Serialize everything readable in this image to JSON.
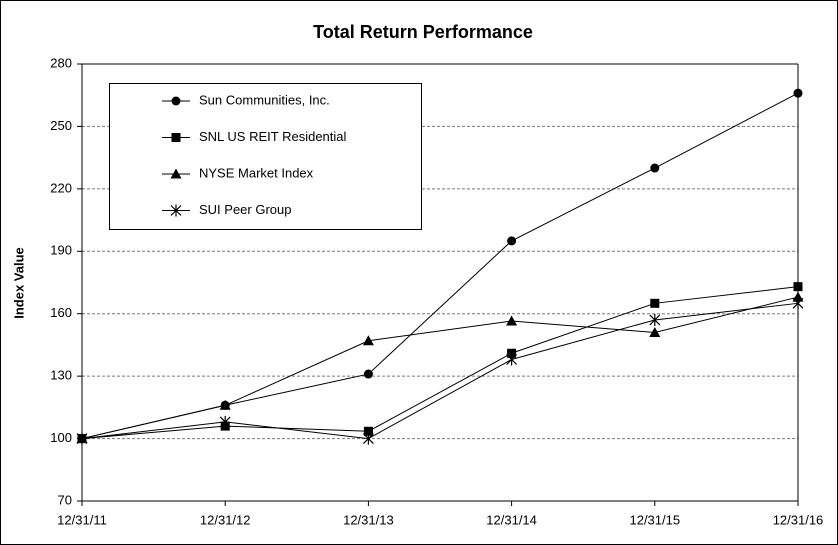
{
  "chart_data": {
    "type": "line",
    "title": "Total Return Performance",
    "y_label": "Index Value",
    "categories": [
      "12/31/11",
      "12/31/12",
      "12/31/13",
      "12/31/14",
      "12/31/15",
      "12/31/16"
    ],
    "series": [
      {
        "name": "Sun Communities, Inc.",
        "color": "#000000",
        "marker": "circle",
        "values": [
          100,
          116,
          131,
          195,
          230,
          266
        ]
      },
      {
        "name": "SNL US REIT Residential",
        "color": "#000000",
        "marker": "square",
        "values": [
          100,
          106,
          103.5,
          141,
          165,
          173
        ]
      },
      {
        "name": "NYSE Market Index",
        "color": "#000000",
        "marker": "triangle",
        "values": [
          100,
          116,
          147,
          156.5,
          151,
          168
        ]
      },
      {
        "name": "SUI Peer Group",
        "color": "#000000",
        "marker": "star",
        "values": [
          100,
          108,
          100,
          138,
          157,
          165
        ]
      }
    ],
    "ylim": [
      70,
      280
    ],
    "yticks": [
      70,
      100,
      130,
      160,
      190,
      220,
      250,
      280
    ],
    "grid": true,
    "legend": "upper left"
  }
}
